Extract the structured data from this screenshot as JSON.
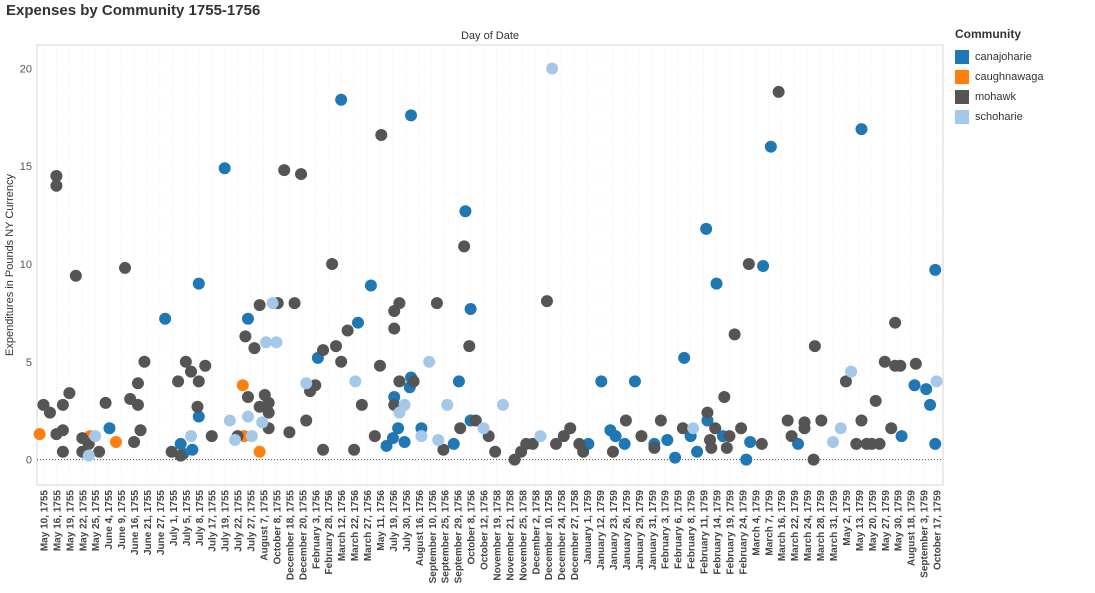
{
  "title": "Expenses by Community 1755-1756",
  "legend": {
    "title": "Community",
    "items": [
      {
        "label": "canajoharie",
        "color": "#1f77b4"
      },
      {
        "label": "caughnawaga",
        "color": "#ff7f0e"
      },
      {
        "label": "mohawk",
        "color": "#555555"
      },
      {
        "label": "schoharie",
        "color": "#a6c8e8"
      }
    ]
  },
  "chart_data": {
    "type": "scatter",
    "title": "Expenses by Community 1755-1756",
    "top_label": "Day of Date",
    "ylabel": "Expenditures in Pounds NY Currency",
    "ylim": [
      -1.3,
      21.2
    ],
    "yticks": [
      0,
      5,
      10,
      15,
      20
    ],
    "x_categories": [
      "May 10, 1755",
      "May 16, 1755",
      "May 19, 1755",
      "May 22, 1755",
      "May 25, 1755",
      "June 4, 1755",
      "June 9, 1755",
      "June 16, 1755",
      "June 21, 1755",
      "June 27, 1755",
      "July 1, 1755",
      "July 5, 1755",
      "July 8, 1755",
      "July 17, 1755",
      "July 19, 1755",
      "July 22, 1755",
      "July 27, 1755",
      "August 7, 1755",
      "October 8, 1755",
      "December 18, 1755",
      "December 20, 1755",
      "February 3, 1756",
      "February 28, 1756",
      "March 12, 1756",
      "March 22, 1756",
      "March 27, 1756",
      "May 11, 1756",
      "July 19, 1756",
      "July 30, 1756",
      "August 16, 1756",
      "September 10, 1756",
      "September 25, 1756",
      "September 29, 1756",
      "October 8, 1756",
      "October 12, 1756",
      "November 19, 1758",
      "November 21, 1758",
      "November 25, 1758",
      "December 2, 1758",
      "December 10, 1758",
      "December 24, 1758",
      "December 27, 1758",
      "January 1, 1759",
      "January 12, 1759",
      "January 23, 1759",
      "January 26, 1759",
      "January 29, 1759",
      "January 31, 1759",
      "February 3, 1759",
      "February 6, 1759",
      "February 8, 1759",
      "February 11, 1759",
      "February 14, 1759",
      "February 19, 1759",
      "February 24, 1759",
      "March 4, 1759",
      "March 7, 1759",
      "March 16, 1759",
      "March 22, 1759",
      "March 24, 1759",
      "March 28, 1759",
      "March 31, 1759",
      "May 2, 1759",
      "May 13, 1759",
      "May 20, 1759",
      "May 27, 1759",
      "May 30, 1759",
      "August 18, 1759",
      "September 3, 1759",
      "October 17, 1759"
    ],
    "series": [
      {
        "name": "canajoharie",
        "color": "#1f77b4",
        "points": [
          {
            "x": 5.1,
            "y": 1.6
          },
          {
            "x": 9.4,
            "y": 7.2
          },
          {
            "x": 10.6,
            "y": 0.8
          },
          {
            "x": 10.8,
            "y": 0.3
          },
          {
            "x": 11.5,
            "y": 0.5
          },
          {
            "x": 12.0,
            "y": 2.2
          },
          {
            "x": 12.0,
            "y": 9.0
          },
          {
            "x": 14.0,
            "y": 14.9
          },
          {
            "x": 15.8,
            "y": 7.2
          },
          {
            "x": 21.2,
            "y": 5.2
          },
          {
            "x": 23.0,
            "y": 18.4
          },
          {
            "x": 24.3,
            "y": 7.0
          },
          {
            "x": 25.3,
            "y": 8.9
          },
          {
            "x": 26.5,
            "y": 0.7
          },
          {
            "x": 27.0,
            "y": 1.1
          },
          {
            "x": 27.1,
            "y": 3.2
          },
          {
            "x": 27.4,
            "y": 1.6
          },
          {
            "x": 27.9,
            "y": 0.9
          },
          {
            "x": 28.4,
            "y": 17.6
          },
          {
            "x": 28.3,
            "y": 3.7
          },
          {
            "x": 28.4,
            "y": 4.2
          },
          {
            "x": 29.2,
            "y": 1.6
          },
          {
            "x": 31.7,
            "y": 0.8
          },
          {
            "x": 32.1,
            "y": 4.0
          },
          {
            "x": 32.6,
            "y": 12.7
          },
          {
            "x": 33.0,
            "y": 7.7
          },
          {
            "x": 33.0,
            "y": 2.0
          },
          {
            "x": 42.1,
            "y": 0.8
          },
          {
            "x": 43.1,
            "y": 4.0
          },
          {
            "x": 43.8,
            "y": 1.5
          },
          {
            "x": 44.2,
            "y": 1.2
          },
          {
            "x": 44.9,
            "y": 0.8
          },
          {
            "x": 45.7,
            "y": 4.0
          },
          {
            "x": 47.2,
            "y": 0.8
          },
          {
            "x": 48.2,
            "y": 1.0
          },
          {
            "x": 48.8,
            "y": 0.1
          },
          {
            "x": 49.5,
            "y": 5.2
          },
          {
            "x": 50.0,
            "y": 1.2
          },
          {
            "x": 50.5,
            "y": 0.4
          },
          {
            "x": 51.2,
            "y": 11.8
          },
          {
            "x": 51.3,
            "y": 2.0
          },
          {
            "x": 52.0,
            "y": 9.0
          },
          {
            "x": 52.5,
            "y": 1.2
          },
          {
            "x": 54.3,
            "y": 0.0
          },
          {
            "x": 54.6,
            "y": 0.9
          },
          {
            "x": 55.6,
            "y": 9.9
          },
          {
            "x": 56.2,
            "y": 16.0
          },
          {
            "x": 58.3,
            "y": 0.8
          },
          {
            "x": 63.2,
            "y": 16.9
          },
          {
            "x": 66.3,
            "y": 1.2
          },
          {
            "x": 67.3,
            "y": 3.8
          },
          {
            "x": 68.2,
            "y": 3.6
          },
          {
            "x": 68.5,
            "y": 2.8
          },
          {
            "x": 68.9,
            "y": 9.7
          },
          {
            "x": 68.9,
            "y": 0.8
          }
        ]
      },
      {
        "name": "caughnawaga",
        "color": "#ff7f0e",
        "points": [
          {
            "x": -0.3,
            "y": 1.3
          },
          {
            "x": 3.6,
            "y": 1.2
          },
          {
            "x": 5.6,
            "y": 0.9
          },
          {
            "x": 15.4,
            "y": 3.8
          },
          {
            "x": 15.5,
            "y": 1.2
          },
          {
            "x": 16.7,
            "y": 0.4
          }
        ]
      },
      {
        "name": "mohawk",
        "color": "#555555",
        "points": [
          {
            "x": 0.0,
            "y": 2.8
          },
          {
            "x": 0.5,
            "y": 2.4
          },
          {
            "x": 1.0,
            "y": 14.5
          },
          {
            "x": 1.0,
            "y": 14.0
          },
          {
            "x": 1.0,
            "y": 1.3
          },
          {
            "x": 1.5,
            "y": 2.8
          },
          {
            "x": 1.5,
            "y": 0.4
          },
          {
            "x": 1.5,
            "y": 1.5
          },
          {
            "x": 2.0,
            "y": 3.4
          },
          {
            "x": 2.5,
            "y": 9.4
          },
          {
            "x": 3.0,
            "y": 1.1
          },
          {
            "x": 3.0,
            "y": 0.4
          },
          {
            "x": 3.5,
            "y": 0.8
          },
          {
            "x": 4.3,
            "y": 0.4
          },
          {
            "x": 4.8,
            "y": 2.9
          },
          {
            "x": 6.3,
            "y": 9.8
          },
          {
            "x": 6.7,
            "y": 3.1
          },
          {
            "x": 7.0,
            "y": 0.9
          },
          {
            "x": 7.3,
            "y": 3.9
          },
          {
            "x": 7.3,
            "y": 2.8
          },
          {
            "x": 7.5,
            "y": 1.5
          },
          {
            "x": 7.8,
            "y": 5.0
          },
          {
            "x": 9.9,
            "y": 0.4
          },
          {
            "x": 10.4,
            "y": 4.0
          },
          {
            "x": 10.6,
            "y": 0.2
          },
          {
            "x": 11.0,
            "y": 5.0
          },
          {
            "x": 11.4,
            "y": 4.5
          },
          {
            "x": 11.9,
            "y": 2.7
          },
          {
            "x": 12.0,
            "y": 4.0
          },
          {
            "x": 12.5,
            "y": 4.8
          },
          {
            "x": 13.0,
            "y": 1.2
          },
          {
            "x": 15.0,
            "y": 1.2
          },
          {
            "x": 15.6,
            "y": 6.3
          },
          {
            "x": 15.8,
            "y": 3.2
          },
          {
            "x": 16.3,
            "y": 5.7
          },
          {
            "x": 16.7,
            "y": 7.9
          },
          {
            "x": 16.7,
            "y": 2.7
          },
          {
            "x": 17.1,
            "y": 3.3
          },
          {
            "x": 17.4,
            "y": 2.9
          },
          {
            "x": 17.4,
            "y": 2.4
          },
          {
            "x": 17.4,
            "y": 1.6
          },
          {
            "x": 18.1,
            "y": 8.0
          },
          {
            "x": 18.6,
            "y": 14.8
          },
          {
            "x": 19.0,
            "y": 1.4
          },
          {
            "x": 19.4,
            "y": 8.0
          },
          {
            "x": 19.9,
            "y": 14.6
          },
          {
            "x": 20.3,
            "y": 2.0
          },
          {
            "x": 20.6,
            "y": 3.5
          },
          {
            "x": 21.0,
            "y": 3.8
          },
          {
            "x": 21.6,
            "y": 0.5
          },
          {
            "x": 21.6,
            "y": 5.6
          },
          {
            "x": 22.3,
            "y": 10.0
          },
          {
            "x": 22.6,
            "y": 5.8
          },
          {
            "x": 23.0,
            "y": 5.0
          },
          {
            "x": 23.5,
            "y": 6.6
          },
          {
            "x": 24.0,
            "y": 0.5
          },
          {
            "x": 24.6,
            "y": 2.8
          },
          {
            "x": 25.6,
            "y": 1.2
          },
          {
            "x": 26.0,
            "y": 4.8
          },
          {
            "x": 26.1,
            "y": 16.6
          },
          {
            "x": 27.1,
            "y": 7.6
          },
          {
            "x": 27.1,
            "y": 6.7
          },
          {
            "x": 27.1,
            "y": 2.8
          },
          {
            "x": 27.5,
            "y": 8.0
          },
          {
            "x": 27.5,
            "y": 4.0
          },
          {
            "x": 28.6,
            "y": 4.0
          },
          {
            "x": 30.4,
            "y": 8.0
          },
          {
            "x": 30.9,
            "y": 0.5
          },
          {
            "x": 32.2,
            "y": 1.6
          },
          {
            "x": 32.5,
            "y": 10.9
          },
          {
            "x": 32.9,
            "y": 5.8
          },
          {
            "x": 33.4,
            "y": 2.0
          },
          {
            "x": 34.4,
            "y": 1.2
          },
          {
            "x": 34.9,
            "y": 0.4
          },
          {
            "x": 36.4,
            "y": 0.0
          },
          {
            "x": 36.9,
            "y": 0.4
          },
          {
            "x": 37.3,
            "y": 0.8
          },
          {
            "x": 37.8,
            "y": 0.8
          },
          {
            "x": 38.9,
            "y": 8.1
          },
          {
            "x": 39.6,
            "y": 0.8
          },
          {
            "x": 40.2,
            "y": 1.2
          },
          {
            "x": 40.7,
            "y": 1.6
          },
          {
            "x": 41.4,
            "y": 0.8
          },
          {
            "x": 41.7,
            "y": 0.4
          },
          {
            "x": 44.0,
            "y": 0.4
          },
          {
            "x": 45.0,
            "y": 2.0
          },
          {
            "x": 46.2,
            "y": 1.2
          },
          {
            "x": 47.2,
            "y": 0.6
          },
          {
            "x": 47.7,
            "y": 2.0
          },
          {
            "x": 49.4,
            "y": 1.6
          },
          {
            "x": 51.5,
            "y": 1.0
          },
          {
            "x": 51.3,
            "y": 2.4
          },
          {
            "x": 51.6,
            "y": 0.6
          },
          {
            "x": 51.9,
            "y": 1.6
          },
          {
            "x": 52.6,
            "y": 3.2
          },
          {
            "x": 52.8,
            "y": 0.6
          },
          {
            "x": 53.0,
            "y": 1.2
          },
          {
            "x": 53.4,
            "y": 6.4
          },
          {
            "x": 53.9,
            "y": 1.6
          },
          {
            "x": 54.5,
            "y": 10.0
          },
          {
            "x": 55.5,
            "y": 0.8
          },
          {
            "x": 56.8,
            "y": 18.8
          },
          {
            "x": 57.5,
            "y": 2.0
          },
          {
            "x": 57.8,
            "y": 1.2
          },
          {
            "x": 58.8,
            "y": 1.6
          },
          {
            "x": 58.8,
            "y": 1.9
          },
          {
            "x": 59.5,
            "y": 0.0
          },
          {
            "x": 59.6,
            "y": 5.8
          },
          {
            "x": 60.1,
            "y": 2.0
          },
          {
            "x": 62.0,
            "y": 4.0
          },
          {
            "x": 62.8,
            "y": 0.8
          },
          {
            "x": 63.2,
            "y": 2.0
          },
          {
            "x": 63.6,
            "y": 0.8
          },
          {
            "x": 64.0,
            "y": 0.8
          },
          {
            "x": 64.3,
            "y": 3.0
          },
          {
            "x": 64.6,
            "y": 0.8
          },
          {
            "x": 65.0,
            "y": 5.0
          },
          {
            "x": 65.5,
            "y": 1.6
          },
          {
            "x": 65.8,
            "y": 7.0
          },
          {
            "x": 65.8,
            "y": 4.8
          },
          {
            "x": 66.2,
            "y": 4.8
          },
          {
            "x": 67.4,
            "y": 4.9
          }
        ]
      },
      {
        "name": "schoharie",
        "color": "#a6c8e8",
        "points": [
          {
            "x": 3.5,
            "y": 0.2
          },
          {
            "x": 4.0,
            "y": 1.2
          },
          {
            "x": 11.4,
            "y": 1.2
          },
          {
            "x": 14.4,
            "y": 2.0
          },
          {
            "x": 14.8,
            "y": 1.0
          },
          {
            "x": 15.8,
            "y": 2.2
          },
          {
            "x": 16.1,
            "y": 1.2
          },
          {
            "x": 16.9,
            "y": 1.9
          },
          {
            "x": 17.2,
            "y": 6.0
          },
          {
            "x": 17.7,
            "y": 8.0
          },
          {
            "x": 18.0,
            "y": 6.0
          },
          {
            "x": 20.3,
            "y": 3.9
          },
          {
            "x": 24.1,
            "y": 4.0
          },
          {
            "x": 27.5,
            "y": 2.4
          },
          {
            "x": 27.9,
            "y": 2.8
          },
          {
            "x": 29.2,
            "y": 1.2
          },
          {
            "x": 29.8,
            "y": 5.0
          },
          {
            "x": 30.5,
            "y": 1.0
          },
          {
            "x": 31.2,
            "y": 2.8
          },
          {
            "x": 34.0,
            "y": 1.6
          },
          {
            "x": 35.5,
            "y": 2.8
          },
          {
            "x": 38.4,
            "y": 1.2
          },
          {
            "x": 39.3,
            "y": 20.0
          },
          {
            "x": 50.2,
            "y": 1.6
          },
          {
            "x": 61.0,
            "y": 0.9
          },
          {
            "x": 61.6,
            "y": 1.6
          },
          {
            "x": 62.4,
            "y": 4.5
          },
          {
            "x": 69.0,
            "y": 4.0
          }
        ]
      }
    ]
  }
}
